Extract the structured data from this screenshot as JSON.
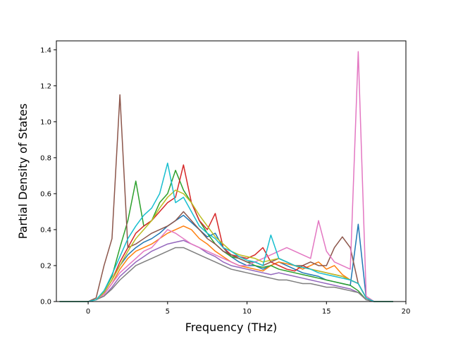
{
  "chart_data": {
    "type": "line",
    "title": "",
    "xlabel": "Frequency (THz)",
    "ylabel": "Partial Density of States",
    "xlim": [
      -2.0,
      20.0
    ],
    "ylim": [
      0.0,
      1.45
    ],
    "xticks": [
      0,
      5,
      10,
      15,
      20
    ],
    "yticks": [
      0.0,
      0.2,
      0.4,
      0.6,
      0.8,
      1.0,
      1.2,
      1.4
    ],
    "xtick_labels": [
      "0",
      "5",
      "10",
      "15",
      "20"
    ],
    "ytick_labels": [
      "0.0",
      "0.2",
      "0.4",
      "0.6",
      "0.8",
      "1.0",
      "1.2",
      "1.4"
    ],
    "grid": false,
    "legend": "none",
    "x": [
      -1.8,
      0.0,
      0.5,
      1.0,
      1.5,
      2.0,
      2.5,
      3.0,
      3.5,
      4.0,
      4.5,
      5.0,
      5.5,
      6.0,
      6.5,
      7.0,
      7.5,
      8.0,
      8.5,
      9.0,
      9.5,
      10.0,
      10.5,
      11.0,
      11.5,
      12.0,
      12.5,
      13.0,
      13.5,
      14.0,
      14.5,
      15.0,
      15.5,
      16.0,
      16.5,
      17.0,
      17.5,
      18.0,
      19.2
    ],
    "series": [
      {
        "color": "#1f77b4",
        "values": [
          0,
          0,
          0.01,
          0.05,
          0.12,
          0.2,
          0.26,
          0.3,
          0.33,
          0.35,
          0.38,
          0.42,
          0.45,
          0.48,
          0.44,
          0.4,
          0.36,
          0.38,
          0.3,
          0.25,
          0.22,
          0.2,
          0.2,
          0.18,
          0.2,
          0.22,
          0.2,
          0.18,
          0.16,
          0.15,
          0.14,
          0.12,
          0.11,
          0.1,
          0.09,
          0.43,
          0.02,
          0,
          0
        ]
      },
      {
        "color": "#ff7f0e",
        "values": [
          0,
          0,
          0.01,
          0.04,
          0.1,
          0.18,
          0.24,
          0.28,
          0.3,
          0.32,
          0.35,
          0.38,
          0.4,
          0.42,
          0.4,
          0.35,
          0.32,
          0.28,
          0.25,
          0.22,
          0.2,
          0.19,
          0.18,
          0.17,
          0.2,
          0.22,
          0.21,
          0.2,
          0.18,
          0.2,
          0.22,
          0.18,
          0.2,
          0.15,
          0.12,
          0.1,
          0.02,
          0,
          0
        ]
      },
      {
        "color": "#2ca02c",
        "values": [
          0,
          0,
          0.01,
          0.06,
          0.14,
          0.3,
          0.45,
          0.67,
          0.42,
          0.45,
          0.55,
          0.6,
          0.73,
          0.62,
          0.55,
          0.45,
          0.38,
          0.32,
          0.28,
          0.25,
          0.24,
          0.22,
          0.2,
          0.19,
          0.2,
          0.18,
          0.17,
          0.16,
          0.15,
          0.14,
          0.13,
          0.12,
          0.11,
          0.1,
          0.09,
          0.06,
          0.01,
          0,
          0
        ]
      },
      {
        "color": "#d62728",
        "values": [
          0,
          0,
          0.01,
          0.05,
          0.12,
          0.22,
          0.3,
          0.38,
          0.42,
          0.45,
          0.5,
          0.55,
          0.58,
          0.76,
          0.55,
          0.45,
          0.4,
          0.49,
          0.3,
          0.26,
          0.25,
          0.24,
          0.26,
          0.3,
          0.22,
          0.2,
          0.18,
          0.17,
          0.2,
          0.18,
          0.17,
          0.16,
          0.15,
          0.14,
          0.12,
          0.1,
          0.02,
          0,
          0
        ]
      },
      {
        "color": "#9467bd",
        "values": [
          0,
          0,
          0.01,
          0.03,
          0.08,
          0.14,
          0.18,
          0.22,
          0.25,
          0.28,
          0.3,
          0.32,
          0.33,
          0.34,
          0.32,
          0.3,
          0.27,
          0.25,
          0.22,
          0.2,
          0.19,
          0.18,
          0.17,
          0.16,
          0.15,
          0.16,
          0.15,
          0.14,
          0.13,
          0.12,
          0.11,
          0.1,
          0.09,
          0.08,
          0.07,
          0.05,
          0.01,
          0,
          0
        ]
      },
      {
        "color": "#8c564b",
        "values": [
          0,
          0,
          0.02,
          0.2,
          0.35,
          1.15,
          0.3,
          0.32,
          0.35,
          0.38,
          0.4,
          0.42,
          0.45,
          0.5,
          0.45,
          0.4,
          0.35,
          0.32,
          0.28,
          0.26,
          0.24,
          0.22,
          0.22,
          0.2,
          0.22,
          0.24,
          0.22,
          0.2,
          0.2,
          0.22,
          0.2,
          0.2,
          0.3,
          0.36,
          0.3,
          0.1,
          0.02,
          0,
          0
        ]
      },
      {
        "color": "#e377c2",
        "values": [
          0,
          0,
          0.01,
          0.04,
          0.1,
          0.16,
          0.2,
          0.24,
          0.28,
          0.3,
          0.35,
          0.4,
          0.38,
          0.35,
          0.32,
          0.3,
          0.28,
          0.26,
          0.24,
          0.22,
          0.2,
          0.2,
          0.22,
          0.24,
          0.26,
          0.28,
          0.3,
          0.28,
          0.26,
          0.24,
          0.45,
          0.28,
          0.22,
          0.2,
          0.18,
          1.39,
          0.03,
          0,
          0
        ]
      },
      {
        "color": "#7f7f7f",
        "values": [
          0,
          0,
          0.01,
          0.03,
          0.07,
          0.12,
          0.16,
          0.2,
          0.22,
          0.24,
          0.26,
          0.28,
          0.3,
          0.3,
          0.28,
          0.26,
          0.24,
          0.22,
          0.2,
          0.18,
          0.17,
          0.16,
          0.15,
          0.14,
          0.13,
          0.12,
          0.12,
          0.11,
          0.1,
          0.1,
          0.09,
          0.08,
          0.08,
          0.07,
          0.06,
          0.05,
          0.01,
          0,
          0
        ]
      },
      {
        "color": "#bcbd22",
        "values": [
          0,
          0,
          0.01,
          0.05,
          0.12,
          0.2,
          0.28,
          0.35,
          0.4,
          0.45,
          0.52,
          0.58,
          0.62,
          0.6,
          0.55,
          0.48,
          0.42,
          0.36,
          0.32,
          0.28,
          0.26,
          0.25,
          0.24,
          0.22,
          0.23,
          0.24,
          0.22,
          0.2,
          0.19,
          0.18,
          0.17,
          0.16,
          0.15,
          0.14,
          0.12,
          0.1,
          0.02,
          0,
          0
        ]
      },
      {
        "color": "#17becf",
        "values": [
          0,
          0,
          0.01,
          0.06,
          0.15,
          0.25,
          0.35,
          0.42,
          0.48,
          0.52,
          0.6,
          0.77,
          0.55,
          0.58,
          0.5,
          0.42,
          0.38,
          0.35,
          0.3,
          0.28,
          0.25,
          0.23,
          0.22,
          0.2,
          0.37,
          0.24,
          0.22,
          0.2,
          0.19,
          0.18,
          0.16,
          0.15,
          0.14,
          0.13,
          0.12,
          0.1,
          0.02,
          0,
          0
        ]
      }
    ]
  }
}
